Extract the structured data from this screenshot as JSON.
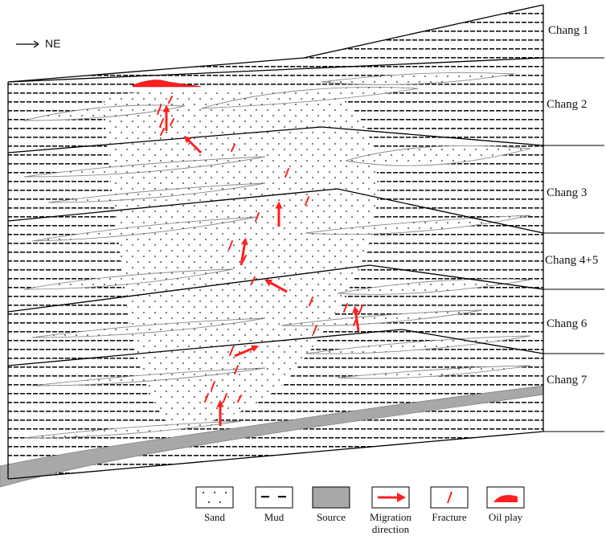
{
  "orientation": {
    "label": "NE",
    "icon": "right-arrow-icon"
  },
  "layers": [
    {
      "name": "Chang 1"
    },
    {
      "name": "Chang 2"
    },
    {
      "name": "Chang 3"
    },
    {
      "name": "Chang 4+5"
    },
    {
      "name": "Chang 6"
    },
    {
      "name": "Chang 7"
    }
  ],
  "legend": {
    "sand": "Sand",
    "mud": "Mud",
    "source": "Source",
    "migration_line1": "Migration",
    "migration_line2": "direction",
    "fracture": "Fracture",
    "oil_play": "Oil play"
  },
  "colors": {
    "migration": "#ff2020",
    "fracture": "#ff2020",
    "oil_play": "#ff2020",
    "source": "#a8a8a8",
    "boundary": "#000000",
    "sand_lens": "#8a8a8a"
  }
}
